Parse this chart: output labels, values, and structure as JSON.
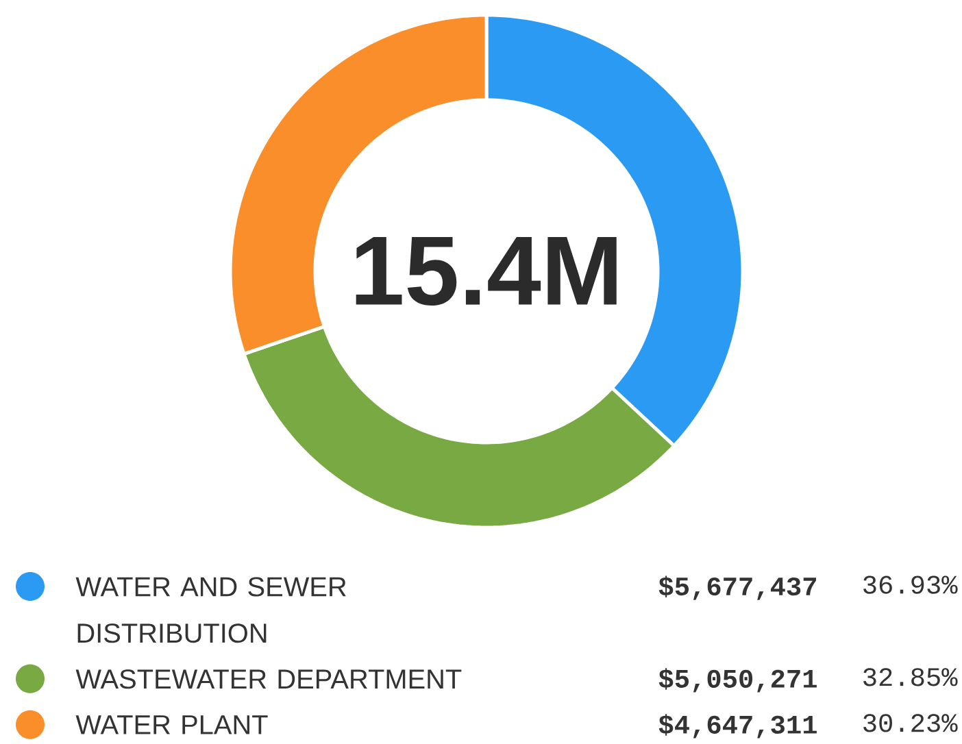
{
  "chart_data": {
    "type": "donut",
    "categories": [
      "WATER AND SEWER DISTRIBUTION",
      "WASTEWATER DEPARTMENT",
      "WATER PLANT"
    ],
    "values": [
      36.93,
      32.85,
      30.23
    ],
    "colors": [
      "#2b9af3",
      "#78a942",
      "#f98e2b"
    ],
    "annotations": [
      "15.4M",
      "$5,677,437",
      "36.93%",
      "$5,050,271",
      "32.85%",
      "$4,647,311",
      "30.23%"
    ],
    "legend": "bottom"
  }
}
